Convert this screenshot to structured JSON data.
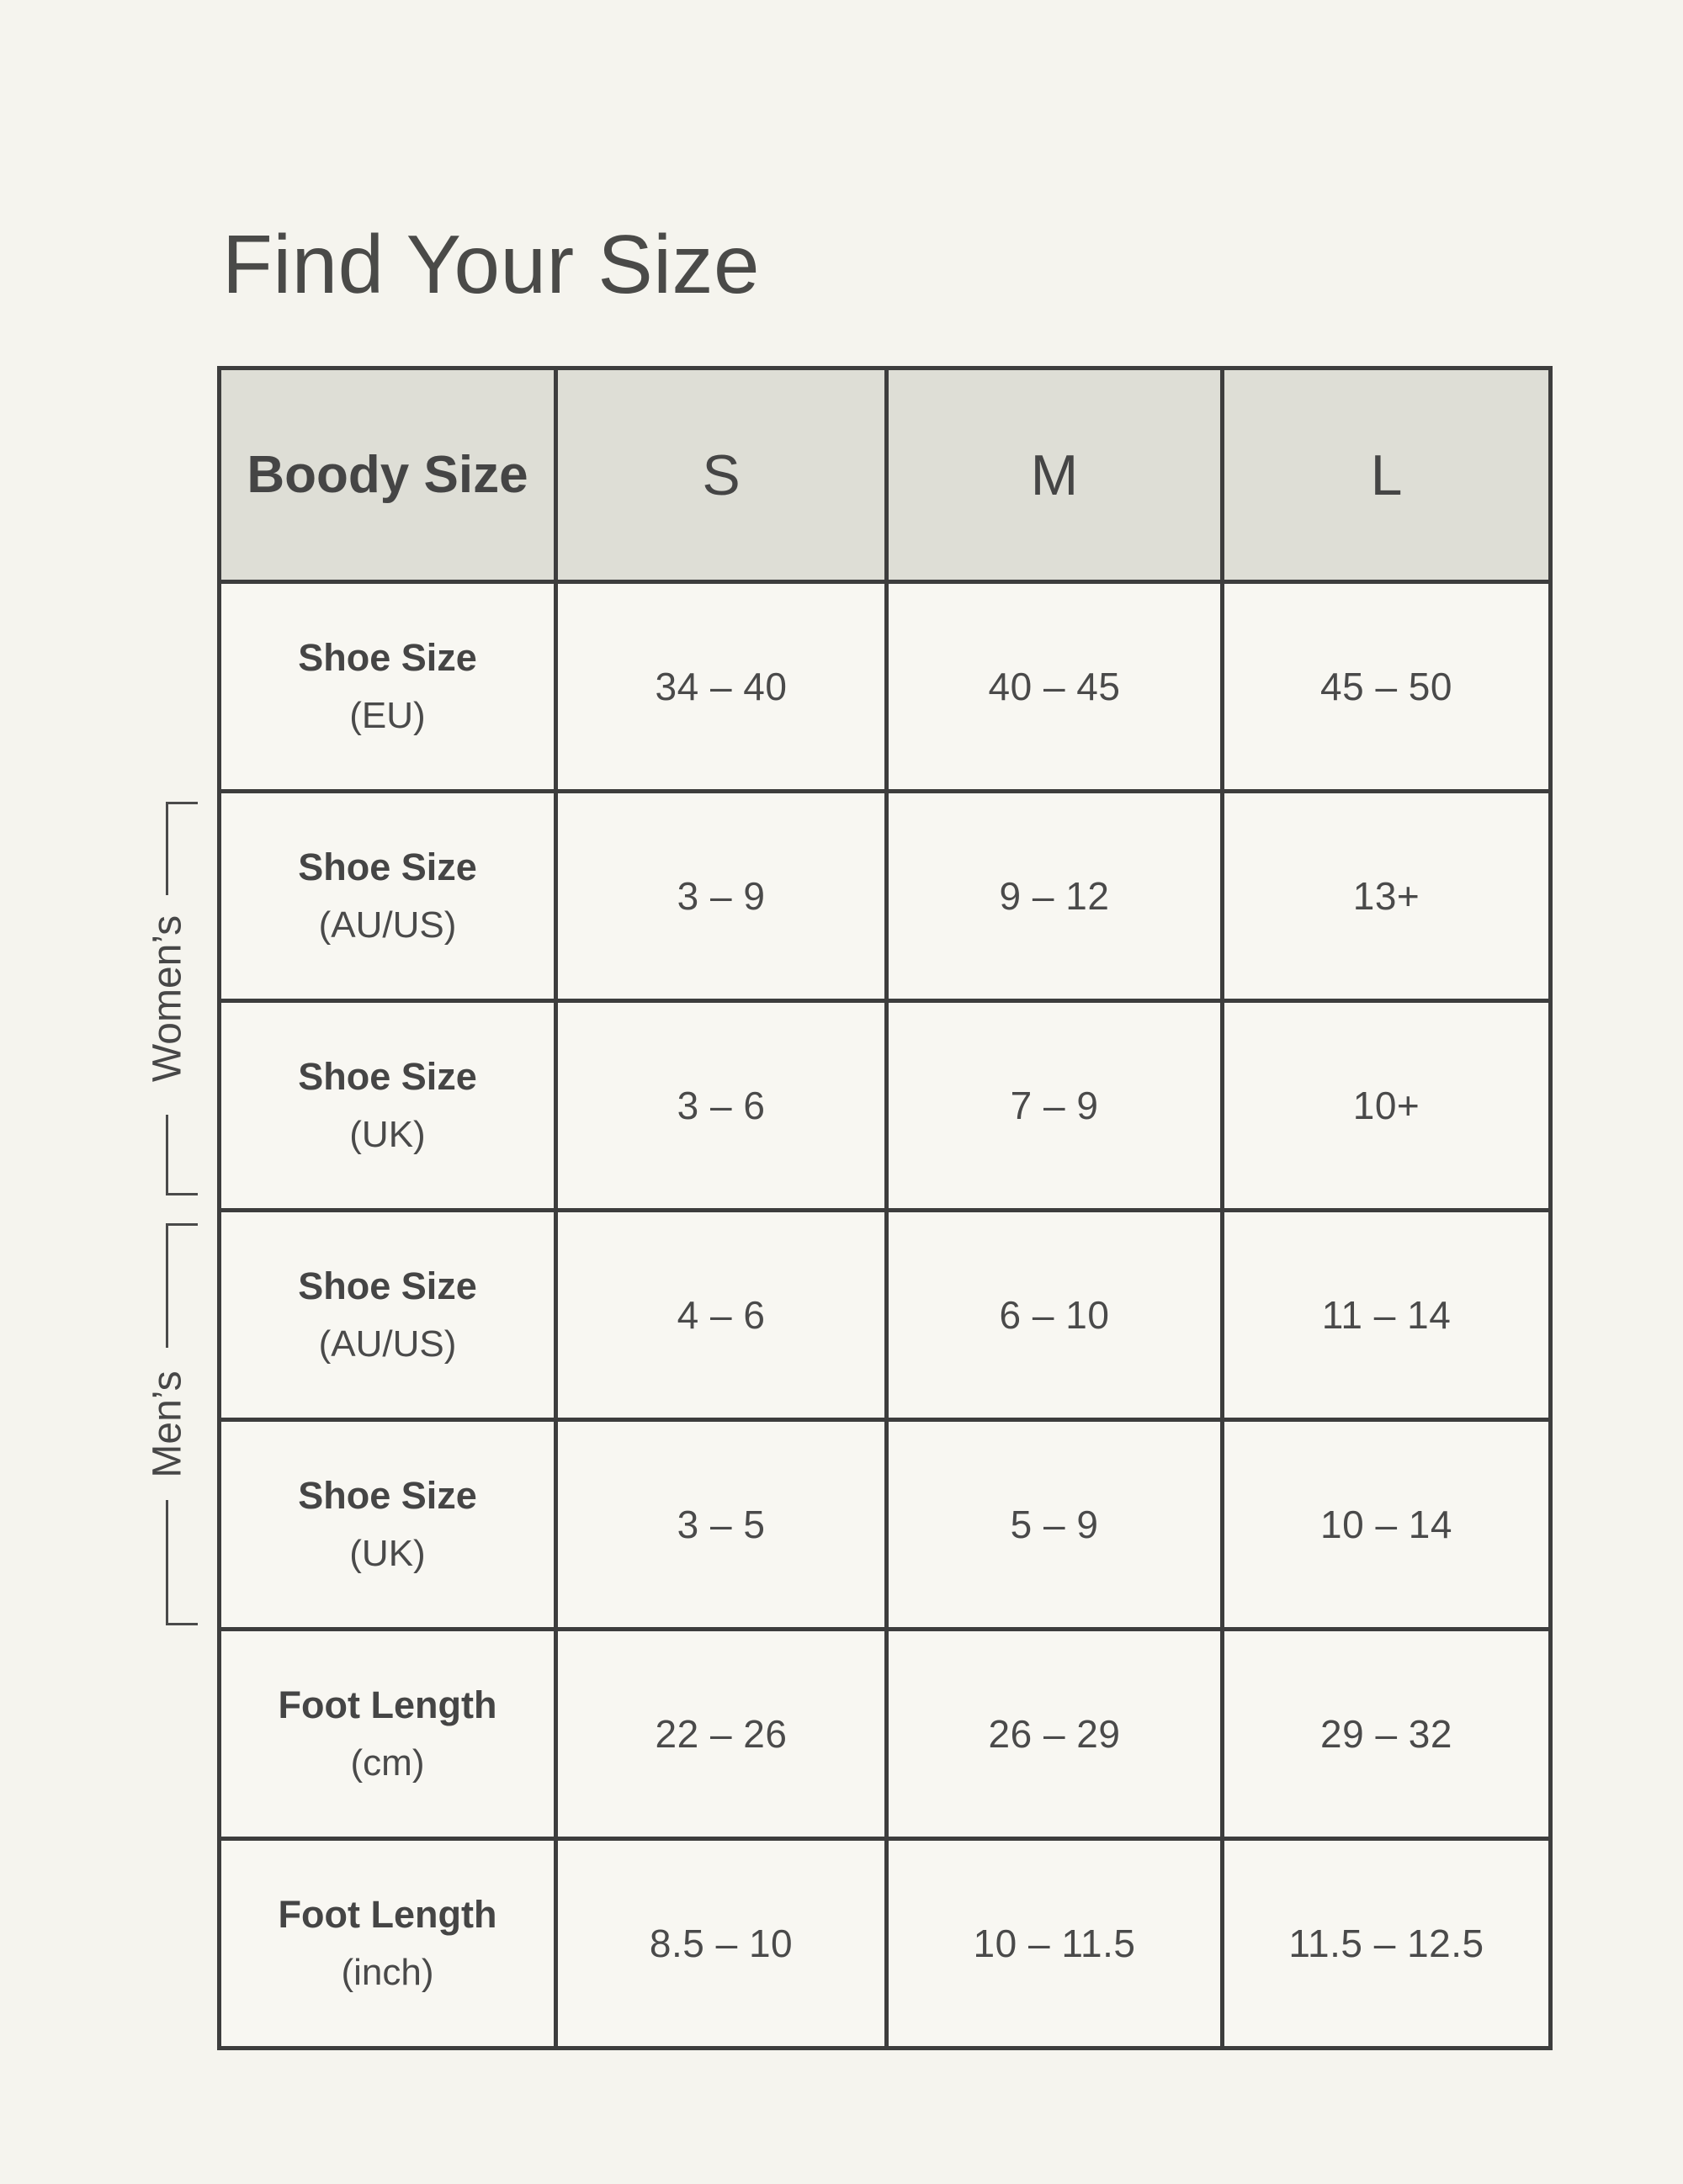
{
  "colors": {
    "page_background": "#F5F4EE",
    "cell_background": "#F8F7F2",
    "header_background": "#DEDED6",
    "grid_line": "#3D3D3D",
    "text": "#474747"
  },
  "chart_data": {
    "type": "table",
    "title": "Find Your Size",
    "columns": [
      "Boody Size",
      "S",
      "M",
      "L"
    ],
    "rows": [
      {
        "group": "",
        "label": "Shoe Size",
        "unit": "(EU)",
        "s": "34 – 40",
        "m": "40 – 45",
        "l": "45 – 50"
      },
      {
        "group": "Women's",
        "label": "Shoe Size",
        "unit": "(AU/US)",
        "s": "3 – 9",
        "m": "9 – 12",
        "l": "13+"
      },
      {
        "group": "Women's",
        "label": "Shoe Size",
        "unit": "(UK)",
        "s": "3 – 6",
        "m": "7 – 9",
        "l": "10+"
      },
      {
        "group": "Men's",
        "label": "Shoe Size",
        "unit": "(AU/US)",
        "s": "4 – 6",
        "m": "6 – 10",
        "l": "11 – 14"
      },
      {
        "group": "Men's",
        "label": "Shoe Size",
        "unit": "(UK)",
        "s": "3 – 5",
        "m": "5 – 9",
        "l": "10 – 14"
      },
      {
        "group": "",
        "label": "Foot Length",
        "unit": "(cm)",
        "s": "22 – 26",
        "m": "26 – 29",
        "l": "29 – 32"
      },
      {
        "group": "",
        "label": "Foot Length",
        "unit": "(inch)",
        "s": "8.5 – 10",
        "m": "10 – 11.5",
        "l": "11.5 – 12.5"
      }
    ],
    "side_labels": {
      "womens": "Women’s",
      "mens": "Men’s"
    }
  }
}
